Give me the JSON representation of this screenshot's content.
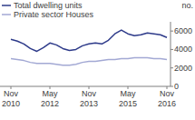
{
  "chart_data": {
    "type": "line",
    "y_label": "no.",
    "categories": [
      "Nov 2010",
      null,
      null,
      null,
      null,
      null,
      "May 2012",
      null,
      null,
      null,
      null,
      null,
      "Nov 2013",
      null,
      null,
      null,
      null,
      null,
      "May 2015",
      null,
      null,
      null,
      null,
      null,
      "Nov 2016"
    ],
    "series": [
      {
        "name": "Total dwelling units",
        "color": "#2e3b8a",
        "values": [
          5100,
          4900,
          4600,
          4100,
          3800,
          4200,
          4700,
          4500,
          4100,
          3900,
          4000,
          4400,
          4600,
          4700,
          4600,
          5000,
          5700,
          6100,
          5700,
          5500,
          5600,
          5800,
          5700,
          5600,
          5300
        ]
      },
      {
        "name": "Private sector Houses",
        "color": "#a3a9d4",
        "values": [
          3000,
          2900,
          2800,
          2600,
          2500,
          2500,
          2500,
          2400,
          2300,
          2300,
          2400,
          2600,
          2700,
          2700,
          2800,
          2900,
          2900,
          3000,
          3000,
          3100,
          3100,
          3100,
          3000,
          3000,
          2900
        ]
      }
    ],
    "ylim": [
      0,
      7000
    ],
    "yticks": [
      0,
      2000,
      4000,
      6000
    ],
    "grid": false,
    "legend": "upper left"
  }
}
